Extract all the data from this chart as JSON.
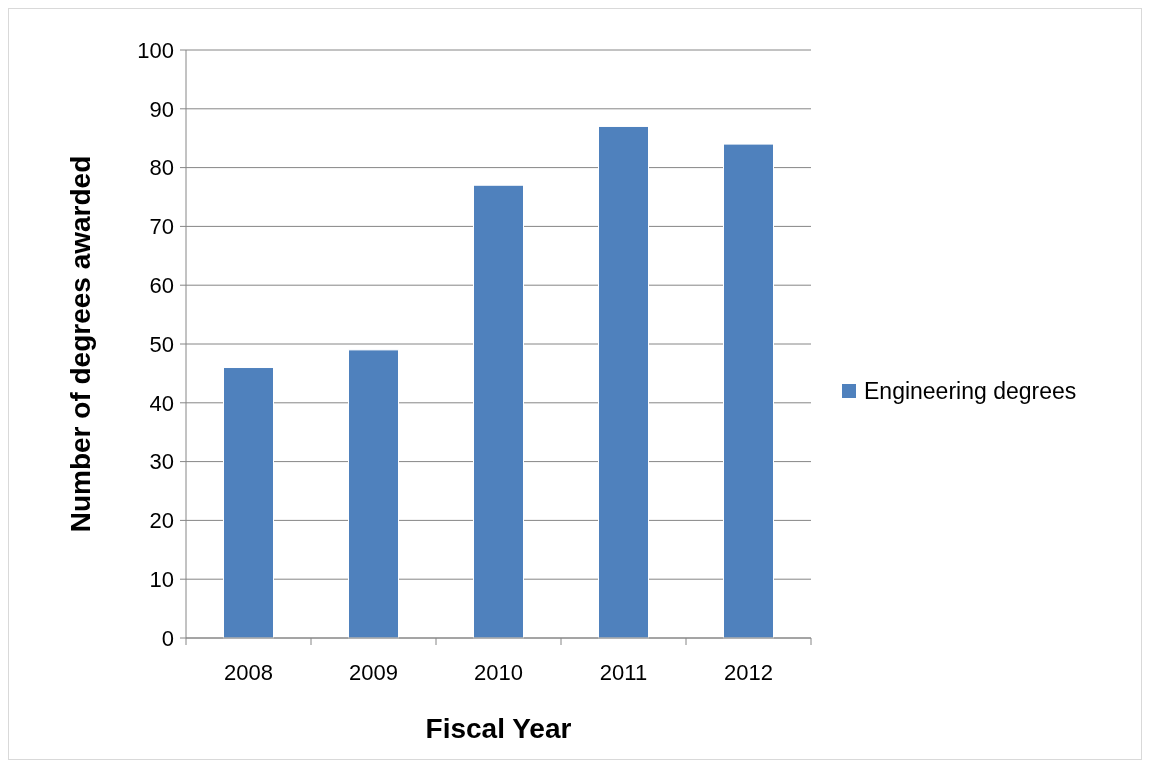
{
  "chart_data": {
    "type": "bar",
    "xlabel": "Fiscal Year",
    "ylabel": "Number of degrees awarded",
    "categories": [
      "2008",
      "2009",
      "2010",
      "2011",
      "2012"
    ],
    "series": [
      {
        "name": "Engineering degrees",
        "color": "#4f81bd",
        "values": [
          46,
          49,
          77,
          87,
          84
        ]
      }
    ],
    "ylim": [
      0,
      100
    ],
    "yticks": [
      0,
      10,
      20,
      30,
      40,
      50,
      60,
      70,
      80,
      90,
      100
    ],
    "grid": "y",
    "legend": "right"
  }
}
